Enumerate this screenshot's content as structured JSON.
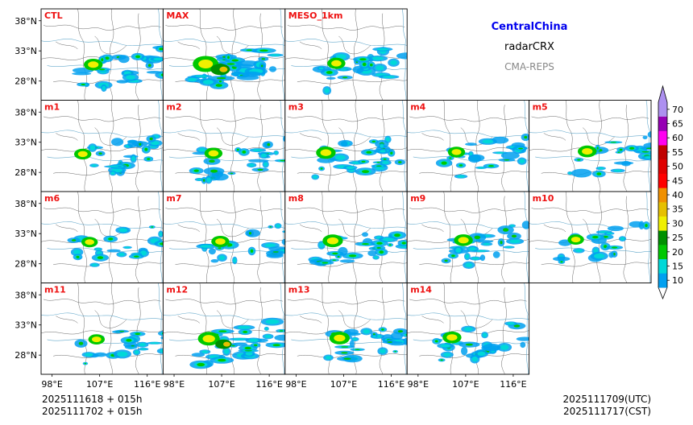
{
  "header": {
    "region": "CentralChina",
    "variable": "radarCRX",
    "system": "CMA-REPS",
    "region_color": "#0000ee",
    "system_color": "#888888"
  },
  "panels": [
    {
      "label": "CTL",
      "row": 0,
      "col": 0,
      "intensity": 0.55
    },
    {
      "label": "MAX",
      "row": 0,
      "col": 1,
      "intensity": 1.0
    },
    {
      "label": "MESO_1km",
      "row": 0,
      "col": 2,
      "intensity": 0.5
    },
    {
      "label": "m1",
      "row": 1,
      "col": 0,
      "intensity": 0.45
    },
    {
      "label": "m2",
      "row": 1,
      "col": 1,
      "intensity": 0.5
    },
    {
      "label": "m3",
      "row": 1,
      "col": 2,
      "intensity": 0.6
    },
    {
      "label": "m4",
      "row": 1,
      "col": 3,
      "intensity": 0.45
    },
    {
      "label": "m5",
      "row": 1,
      "col": 4,
      "intensity": 0.55
    },
    {
      "label": "m6",
      "row": 2,
      "col": 0,
      "intensity": 0.4
    },
    {
      "label": "m7",
      "row": 2,
      "col": 1,
      "intensity": 0.5
    },
    {
      "label": "m8",
      "row": 2,
      "col": 2,
      "intensity": 0.65
    },
    {
      "label": "m9",
      "row": 2,
      "col": 3,
      "intensity": 0.55
    },
    {
      "label": "m10",
      "row": 2,
      "col": 4,
      "intensity": 0.4
    },
    {
      "label": "m11",
      "row": 3,
      "col": 0,
      "intensity": 0.4
    },
    {
      "label": "m12",
      "row": 3,
      "col": 1,
      "intensity": 0.75
    },
    {
      "label": "m13",
      "row": 3,
      "col": 2,
      "intensity": 0.65
    },
    {
      "label": "m14",
      "row": 3,
      "col": 3,
      "intensity": 0.55
    }
  ],
  "axes": {
    "lat_ticks": [
      "38°N",
      "33°N",
      "28°N"
    ],
    "lon_ticks": [
      "98°E",
      "107°E",
      "116°E"
    ]
  },
  "colorbar": {
    "levels": [
      "10",
      "15",
      "20",
      "25",
      "30",
      "35",
      "40",
      "45",
      "50",
      "55",
      "60",
      "65",
      "70"
    ],
    "colors": [
      "#00a0f0",
      "#00d8d8",
      "#00c800",
      "#009000",
      "#f0f000",
      "#e6c000",
      "#f09000",
      "#ff0000",
      "#e00000",
      "#c00000",
      "#ff00f0",
      "#9600b4",
      "#ad90f0"
    ]
  },
  "footer": {
    "init_utc": "2025111618  +  015h",
    "init_cst": "2025111702  +  015h",
    "valid_utc": "2025111709(UTC)",
    "valid_cst": "2025111717(CST)"
  },
  "panel_label_color": "#ee1111"
}
